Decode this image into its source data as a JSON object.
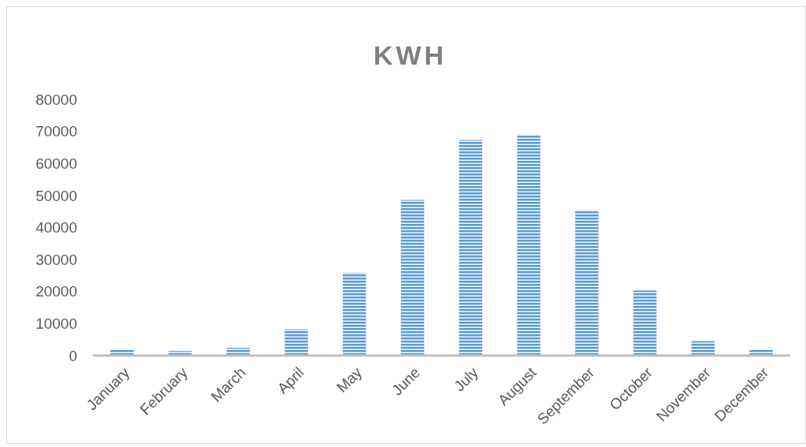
{
  "chart_data": {
    "type": "bar",
    "title": "KWH",
    "categories": [
      "January",
      "February",
      "March",
      "April",
      "May",
      "June",
      "July",
      "August",
      "September",
      "October",
      "November",
      "December"
    ],
    "values": [
      2000,
      1400,
      2400,
      8200,
      25800,
      48600,
      67300,
      68800,
      45400,
      20300,
      4500,
      1800
    ],
    "color": "#5b9bd5",
    "ylim": [
      0,
      80000
    ],
    "yticks": [
      0,
      10000,
      20000,
      30000,
      40000,
      50000,
      60000,
      70000,
      80000
    ],
    "grid": false
  }
}
